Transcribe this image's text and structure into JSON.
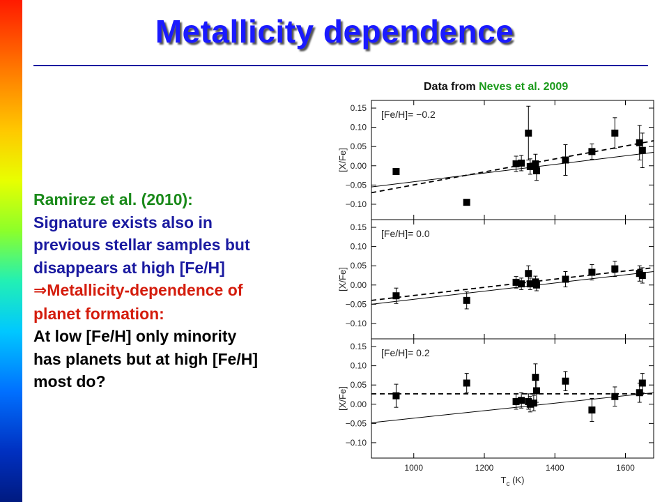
{
  "slide": {
    "title": "Metallicity dependence",
    "source_prefix": "Data from ",
    "source_highlight": "Neves et al. 2009",
    "lines": [
      {
        "cls": "green",
        "text": "Ramirez et al. (2010):"
      },
      {
        "cls": "blue",
        "text": "Signature exists also in"
      },
      {
        "cls": "blue",
        "text": "previous stellar samples but"
      },
      {
        "cls": "blue",
        "text": "disappears at high [Fe/H]"
      },
      {
        "cls": "red",
        "arrow": "⇒",
        "text": "Metallicity-dependence of"
      },
      {
        "cls": "red",
        "text": "planet formation:"
      },
      {
        "cls": "black",
        "text": "At low [Fe/H] only minority"
      },
      {
        "cls": "black",
        "text": "has planets but at high [Fe/H]"
      },
      {
        "cls": "black",
        "text": "most do?"
      }
    ],
    "colors": {
      "title": "#1a1aff",
      "green": "#1a8a1a",
      "blue": "#1a1aa0",
      "red": "#d41c0c"
    }
  },
  "chart_data": [
    {
      "type": "scatter",
      "panel_label": "[Fe/H]= −0.2",
      "ylabel": "[X/Fe]",
      "xlim": [
        880,
        1680
      ],
      "ylim": [
        -0.14,
        0.17
      ],
      "yticks": [
        "0.15",
        "0.10",
        "0.05",
        "0.00",
        "−0.05",
        "−0.10"
      ],
      "ytick_values": [
        0.15,
        0.1,
        0.05,
        0.0,
        -0.05,
        -0.1
      ],
      "points": [
        {
          "x": 950,
          "y": -0.015,
          "err": 0
        },
        {
          "x": 1150,
          "y": -0.095,
          "err": 0
        },
        {
          "x": 1290,
          "y": 0.005,
          "err": 0.02
        },
        {
          "x": 1305,
          "y": 0.007,
          "err": 0.02
        },
        {
          "x": 1325,
          "y": 0.085,
          "err": 0.07
        },
        {
          "x": 1330,
          "y": -0.002,
          "err": 0.02
        },
        {
          "x": 1345,
          "y": 0.005,
          "err": 0.025
        },
        {
          "x": 1348,
          "y": -0.013,
          "err": 0.025
        },
        {
          "x": 1430,
          "y": 0.015,
          "err": 0.04
        },
        {
          "x": 1505,
          "y": 0.037,
          "err": 0.02
        },
        {
          "x": 1570,
          "y": 0.085,
          "err": 0.04
        },
        {
          "x": 1640,
          "y": 0.06,
          "err": 0.045
        },
        {
          "x": 1648,
          "y": 0.04,
          "err": 0.045
        }
      ],
      "solid_line": {
        "x": [
          880,
          1680
        ],
        "y": [
          -0.055,
          0.035
        ]
      },
      "dashed_line": {
        "x": [
          880,
          1680
        ],
        "y": [
          -0.07,
          0.065
        ]
      }
    },
    {
      "type": "scatter",
      "panel_label": "[Fe/H]= 0.0",
      "ylabel": "[X/Fe]",
      "xlim": [
        880,
        1680
      ],
      "ylim": [
        -0.14,
        0.17
      ],
      "yticks": [
        "0.15",
        "0.10",
        "0.05",
        "0.00",
        "−0.05",
        "−0.10"
      ],
      "ytick_values": [
        0.15,
        0.1,
        0.05,
        0.0,
        -0.05,
        -0.1
      ],
      "points": [
        {
          "x": 950,
          "y": -0.028,
          "err": 0.02
        },
        {
          "x": 1150,
          "y": -0.04,
          "err": 0.022
        },
        {
          "x": 1290,
          "y": 0.007,
          "err": 0.015
        },
        {
          "x": 1305,
          "y": 0.003,
          "err": 0.015
        },
        {
          "x": 1325,
          "y": 0.03,
          "err": 0.02
        },
        {
          "x": 1330,
          "y": 0.003,
          "err": 0.015
        },
        {
          "x": 1345,
          "y": 0.008,
          "err": 0.015
        },
        {
          "x": 1348,
          "y": 0.0,
          "err": 0.015
        },
        {
          "x": 1430,
          "y": 0.015,
          "err": 0.02
        },
        {
          "x": 1505,
          "y": 0.033,
          "err": 0.02
        },
        {
          "x": 1570,
          "y": 0.042,
          "err": 0.02
        },
        {
          "x": 1640,
          "y": 0.03,
          "err": 0.02
        },
        {
          "x": 1648,
          "y": 0.025,
          "err": 0.02
        }
      ],
      "solid_line": {
        "x": [
          880,
          1680
        ],
        "y": [
          -0.05,
          0.035
        ]
      },
      "dashed_line": {
        "x": [
          880,
          1680
        ],
        "y": [
          -0.04,
          0.045
        ]
      }
    },
    {
      "type": "scatter",
      "panel_label": "[Fe/H]= 0.2",
      "ylabel": "[X/Fe]",
      "xlabel": "T",
      "xlabel_sub": "c",
      "xlabel_unit": " (K)",
      "xlim": [
        880,
        1680
      ],
      "ylim": [
        -0.14,
        0.17
      ],
      "xticks": [
        "1000",
        "1200",
        "1400",
        "1600"
      ],
      "xtick_values": [
        1000,
        1200,
        1400,
        1600
      ],
      "yticks": [
        "0.15",
        "0.10",
        "0.05",
        "0.00",
        "−0.05",
        "−0.10"
      ],
      "ytick_values": [
        0.15,
        0.1,
        0.05,
        0.0,
        -0.05,
        -0.1
      ],
      "points": [
        {
          "x": 950,
          "y": 0.022,
          "err": 0.03
        },
        {
          "x": 1150,
          "y": 0.055,
          "err": 0.025
        },
        {
          "x": 1290,
          "y": 0.007,
          "err": 0.02
        },
        {
          "x": 1305,
          "y": 0.01,
          "err": 0.02
        },
        {
          "x": 1325,
          "y": 0.007,
          "err": 0.02
        },
        {
          "x": 1330,
          "y": 0.0,
          "err": 0.02
        },
        {
          "x": 1340,
          "y": 0.003,
          "err": 0.02
        },
        {
          "x": 1345,
          "y": 0.07,
          "err": 0.035
        },
        {
          "x": 1348,
          "y": 0.035,
          "err": 0.03
        },
        {
          "x": 1430,
          "y": 0.06,
          "err": 0.025
        },
        {
          "x": 1505,
          "y": -0.015,
          "err": 0.03
        },
        {
          "x": 1570,
          "y": 0.02,
          "err": 0.025
        },
        {
          "x": 1640,
          "y": 0.03,
          "err": 0.025
        },
        {
          "x": 1648,
          "y": 0.055,
          "err": 0.025
        }
      ],
      "solid_line": {
        "x": [
          880,
          1680
        ],
        "y": [
          -0.048,
          0.03
        ]
      },
      "dashed_line": {
        "x": [
          880,
          1680
        ],
        "y": [
          0.027,
          0.027
        ]
      }
    }
  ]
}
